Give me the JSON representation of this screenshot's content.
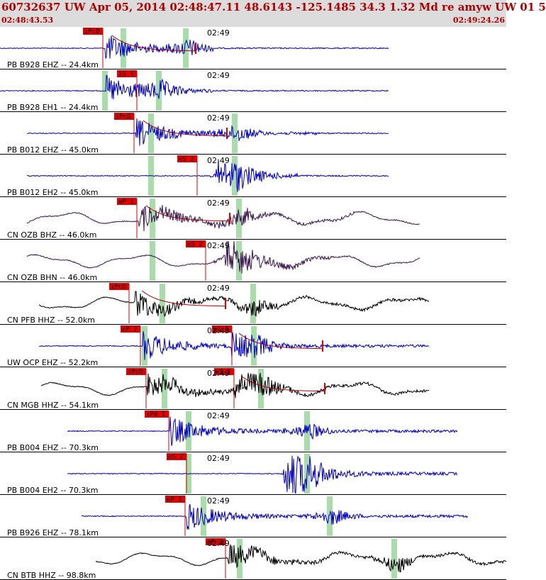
{
  "header": {
    "title": "60732637 UW Apr 05, 2014 02:48:47.11    48.6143 -125.1485 34.3 1.32 Md re amyw UW 01   5",
    "start_time": "02:48:43.53",
    "end_time": "02:49:24.26"
  },
  "time_tick_label": "02:49",
  "colors": {
    "header_bg": "#dcdcdc",
    "header_text": "#b00000",
    "trace_blue": "#0000c8",
    "trace_black": "#000000",
    "trace_purple": "#3a1450",
    "pick_red": "#e00000",
    "window_green": "#a8dca8",
    "fit_curve": "#b00000"
  },
  "traces": [
    {
      "label": "PB B928 EHZ -- 24.4km",
      "color": "blue",
      "pick": "iPcD",
      "s_pick": "",
      "amp_pick": true
    },
    {
      "label": "PB B928 EH1 -- 24.4km",
      "color": "blue",
      "pick": "iS 1",
      "s_pick": "",
      "amp_pick": false
    },
    {
      "label": "PB B012 EHZ -- 45.0km",
      "color": "blue",
      "pick": "iPcD",
      "s_pick": "",
      "amp_pick": true
    },
    {
      "label": "PB B012 EH2 -- 45.0km",
      "color": "blue",
      "pick": "eS 2",
      "s_pick": "",
      "amp_pick": false
    },
    {
      "label": "CN OZB BHZ -- 46.0km",
      "color": "purple",
      "pick": "eP 1",
      "s_pick": "",
      "amp_pick": true
    },
    {
      "label": "CN OZB BHN -- 46.0km",
      "color": "purple",
      "pick": "eS 2",
      "s_pick": "",
      "amp_pick": false
    },
    {
      "label": "CN PFB HHZ -- 52.0km",
      "color": "black",
      "pick": "iPcD",
      "s_pick": "",
      "amp_pick": true
    },
    {
      "label": "UW OCP EHZ -- 52.2km",
      "color": "blue",
      "pick": "eP 2",
      "s_pick": "eS 1",
      "amp_pick": true
    },
    {
      "label": "CN MGB HHZ -- 54.1km",
      "color": "black",
      "pick": "iPcD",
      "s_pick": "eS 1",
      "amp_pick": true
    },
    {
      "label": "PB B004 EHZ -- 70.3km",
      "color": "blue",
      "pick": "iPd 1",
      "s_pick": "",
      "amp_pick": false
    },
    {
      "label": "PB B004 EH2 -- 70.3km",
      "color": "blue",
      "pick": "eS 2",
      "s_pick": "",
      "amp_pick": false
    },
    {
      "label": "PB B926 EHZ -- 78.1km",
      "color": "blue",
      "pick": "eP 1",
      "s_pick": "",
      "amp_pick": false
    },
    {
      "label": "CN BTB HHZ -- 98.8km",
      "color": "black",
      "pick": "eP 2",
      "s_pick": "",
      "amp_pick": false
    }
  ]
}
